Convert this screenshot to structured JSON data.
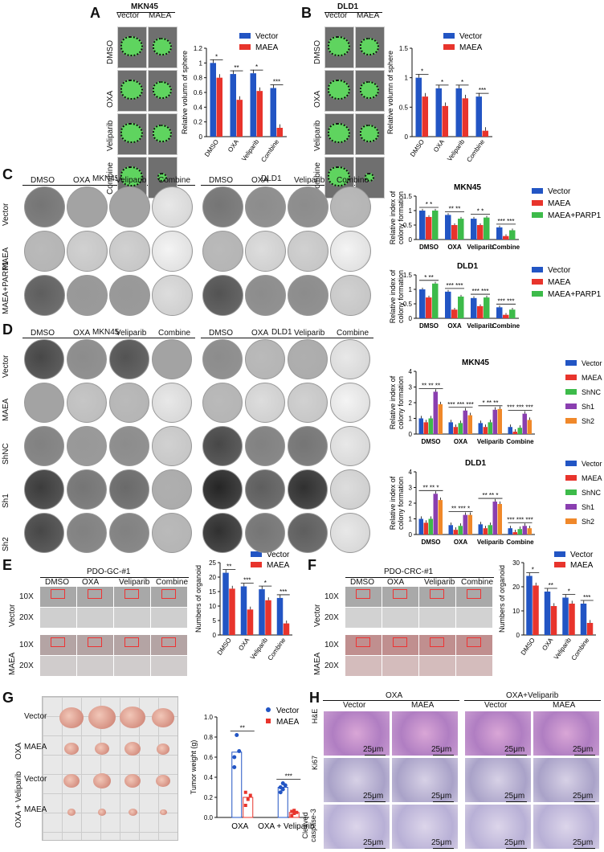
{
  "colors": {
    "vector": "#2255c4",
    "maea": "#e8342c",
    "maea_parp1": "#3dbb4a",
    "shnc": "#3dbb4a",
    "sh1": "#8a3fb0",
    "sh2": "#f0882a"
  },
  "panelA": {
    "label": "A",
    "cell": "MKN45",
    "cols": [
      "Vector",
      "MAEA"
    ],
    "rows": [
      "DMSO",
      "OXA",
      "Veliparib",
      "Combine"
    ]
  },
  "panelB": {
    "label": "B",
    "cell": "DLD1",
    "cols": [
      "Vector",
      "MAEA"
    ],
    "rows": [
      "DMSO",
      "OXA",
      "Veliparib",
      "Combine"
    ]
  },
  "panelC": {
    "label": "C",
    "cells": [
      "MKN45",
      "DLD1"
    ],
    "cols": [
      "DMSO",
      "OXA",
      "Veliparib",
      "Combine"
    ],
    "rows": [
      "Vector",
      "MAEA",
      "MAEA+PARP1"
    ]
  },
  "panelD": {
    "label": "D",
    "cells": [
      "MKN45",
      "DLD1"
    ],
    "cols": [
      "DMSO",
      "OXA",
      "Veliparib",
      "Combine"
    ],
    "rows": [
      "Vector",
      "MAEA",
      "ShNC",
      "Sh1",
      "Sh2"
    ]
  },
  "panelE": {
    "label": "E",
    "title": "PDO-GC-#1",
    "cols": [
      "DMSO",
      "OXA",
      "Veliparib",
      "Combine"
    ],
    "groups": [
      "Vector",
      "MAEA"
    ],
    "mags": [
      "10X",
      "20X"
    ]
  },
  "panelF": {
    "label": "F",
    "title": "PDO-CRC-#1",
    "cols": [
      "DMSO",
      "OXA",
      "Veliparib",
      "Combine"
    ],
    "groups": [
      "Vector",
      "MAEA"
    ],
    "mags": [
      "10X",
      "20X"
    ]
  },
  "panelG": {
    "label": "G",
    "groups": [
      "OXA",
      "OXA + Veliparib"
    ],
    "rows": [
      "Vector",
      "MAEA",
      "Vector",
      "MAEA"
    ]
  },
  "panelH": {
    "label": "H",
    "groups": [
      "OXA",
      "OXA+Veliparib"
    ],
    "cols": [
      "Vector",
      "MAEA",
      "Vector",
      "MAEA"
    ],
    "rows": [
      "H&E",
      "Ki67",
      "Cleaved caspase-3"
    ],
    "scale": "25μm"
  },
  "chart_data": [
    {
      "id": "A",
      "type": "bar",
      "title": "",
      "ylabel": "Relative volumn of sphere",
      "ylim": [
        0,
        1.2
      ],
      "yticks": [
        0.0,
        0.2,
        0.4,
        0.6,
        0.8,
        1.0,
        1.2
      ],
      "categories": [
        "DMSO",
        "OXA",
        "Veliparib",
        "Combine"
      ],
      "series": [
        {
          "name": "Vector",
          "values": [
            1.0,
            0.85,
            0.86,
            0.66
          ]
        },
        {
          "name": "MAEA",
          "values": [
            0.8,
            0.5,
            0.62,
            0.12
          ]
        }
      ],
      "annotations": [
        "*",
        "**",
        "*",
        "***"
      ],
      "legend": "top-right"
    },
    {
      "id": "B",
      "type": "bar",
      "title": "",
      "ylabel": "Relative volumn of sphere",
      "ylim": [
        0,
        1.5
      ],
      "yticks": [
        0.0,
        0.5,
        1.0,
        1.5
      ],
      "categories": [
        "DMSO",
        "OXA",
        "Veliparib",
        "Combine"
      ],
      "series": [
        {
          "name": "Vector",
          "values": [
            1.0,
            0.82,
            0.82,
            0.68
          ]
        },
        {
          "name": "MAEA",
          "values": [
            0.68,
            0.52,
            0.65,
            0.1
          ]
        }
      ],
      "annotations": [
        "*",
        "*",
        "*",
        "***"
      ],
      "legend": "top-right"
    },
    {
      "id": "C1",
      "type": "bar",
      "title": "MKN45",
      "ylabel": "Relative index of colony formation",
      "ylim": [
        0,
        1.5
      ],
      "yticks": [
        0.0,
        0.5,
        1.0,
        1.5
      ],
      "categories": [
        "DMSO",
        "OXA",
        "Veliparib",
        "Combine"
      ],
      "series": [
        {
          "name": "Vector",
          "values": [
            1.0,
            0.85,
            0.72,
            0.42
          ]
        },
        {
          "name": "MAEA",
          "values": [
            0.78,
            0.5,
            0.5,
            0.12
          ]
        },
        {
          "name": "MAEA+PARP1",
          "values": [
            1.0,
            0.72,
            0.76,
            0.32
          ]
        }
      ],
      "annotations": [
        "* *",
        "** **",
        "* *",
        "*** ***"
      ],
      "legend": "top-right"
    },
    {
      "id": "C2",
      "type": "bar",
      "title": "DLD1",
      "ylabel": "Relative index of colony formation",
      "ylim": [
        0,
        1.5
      ],
      "yticks": [
        0.0,
        0.5,
        1.0,
        1.5
      ],
      "categories": [
        "DMSO",
        "OXA",
        "Veliparib",
        "Combine"
      ],
      "series": [
        {
          "name": "Vector",
          "values": [
            1.0,
            0.92,
            0.7,
            0.38
          ]
        },
        {
          "name": "MAEA",
          "values": [
            0.72,
            0.3,
            0.42,
            0.12
          ]
        },
        {
          "name": "MAEA+PARP1",
          "values": [
            1.2,
            0.75,
            0.72,
            0.3
          ]
        }
      ],
      "annotations": [
        "* **",
        "*** ***",
        "*** ***",
        "*** ***"
      ],
      "legend": "top-right"
    },
    {
      "id": "D1",
      "type": "bar",
      "title": "MKN45",
      "ylabel": "Relative index of colony formation",
      "ylim": [
        0,
        4
      ],
      "yticks": [
        0,
        1,
        2,
        3,
        4
      ],
      "categories": [
        "DMSO",
        "OXA",
        "Veliparib",
        "Combine"
      ],
      "series": [
        {
          "name": "Vector",
          "values": [
            1.0,
            0.75,
            0.7,
            0.45
          ]
        },
        {
          "name": "MAEA",
          "values": [
            0.75,
            0.45,
            0.45,
            0.15
          ]
        },
        {
          "name": "ShNC",
          "values": [
            1.0,
            0.7,
            0.75,
            0.4
          ]
        },
        {
          "name": "Sh1",
          "values": [
            2.7,
            1.5,
            1.55,
            1.3
          ]
        },
        {
          "name": "Sh2",
          "values": [
            1.9,
            1.2,
            1.6,
            0.9
          ]
        }
      ],
      "annotations": [
        "** ** **",
        "*** *** ***",
        "* ** **",
        "*** *** ***"
      ],
      "legend": "right"
    },
    {
      "id": "D2",
      "type": "bar",
      "title": "DLD1",
      "ylabel": "Relative index of colony formation",
      "ylim": [
        0,
        4
      ],
      "yticks": [
        0,
        1,
        2,
        3,
        4
      ],
      "categories": [
        "DMSO",
        "OXA",
        "Veliparib",
        "Combine"
      ],
      "series": [
        {
          "name": "Vector",
          "values": [
            1.0,
            0.6,
            0.65,
            0.4
          ]
        },
        {
          "name": "MAEA",
          "values": [
            0.75,
            0.3,
            0.4,
            0.15
          ]
        },
        {
          "name": "ShNC",
          "values": [
            1.0,
            0.55,
            0.6,
            0.35
          ]
        },
        {
          "name": "Sh1",
          "values": [
            2.6,
            1.25,
            2.1,
            0.55
          ]
        },
        {
          "name": "Sh2",
          "values": [
            2.2,
            1.25,
            1.95,
            0.4
          ]
        }
      ],
      "annotations": [
        "** ** *",
        "** *** *",
        "** ** *",
        "*** *** ***"
      ],
      "legend": "right"
    },
    {
      "id": "E",
      "type": "bar",
      "title": "",
      "ylabel": "Numbers of organoid",
      "ylim": [
        0,
        25
      ],
      "yticks": [
        0,
        5,
        10,
        15,
        20,
        25
      ],
      "categories": [
        "DMSO",
        "OXA",
        "Veliparib",
        "Combine"
      ],
      "series": [
        {
          "name": "Vector",
          "values": [
            21.5,
            16.8,
            15.8,
            12.8
          ]
        },
        {
          "name": "MAEA",
          "values": [
            16.0,
            8.8,
            12.0,
            4.0
          ]
        }
      ],
      "annotations": [
        "**",
        "***",
        "*",
        "***"
      ],
      "legend": "top-right"
    },
    {
      "id": "F",
      "type": "bar",
      "title": "",
      "ylabel": "Numbers of organoid",
      "ylim": [
        0,
        30
      ],
      "yticks": [
        0,
        10,
        20,
        30
      ],
      "categories": [
        "DMSO",
        "OXA",
        "Veliparib",
        "Combine"
      ],
      "series": [
        {
          "name": "Vector",
          "values": [
            24.5,
            18.0,
            15.5,
            13.0
          ]
        },
        {
          "name": "MAEA",
          "values": [
            20.5,
            12.0,
            13.0,
            5.0
          ]
        }
      ],
      "annotations": [
        "*",
        "**",
        "*",
        "***"
      ],
      "legend": "top-right"
    },
    {
      "id": "G",
      "type": "scatter",
      "title": "",
      "ylabel": "Tumor weight (g)",
      "ylim": [
        0,
        1.0
      ],
      "yticks": [
        0.0,
        0.2,
        0.4,
        0.6,
        0.8,
        1.0
      ],
      "categories": [
        "OXA",
        "OXA + Veliparib"
      ],
      "series": [
        {
          "name": "Vector",
          "values": [
            0.65,
            0.3
          ],
          "points": [
            [
              0.5,
              0.82,
              0.66,
              0.6
            ],
            [
              0.25,
              0.28,
              0.32,
              0.3,
              0.34
            ]
          ]
        },
        {
          "name": "MAEA",
          "values": [
            0.2,
            0.05
          ],
          "points": [
            [
              0.12,
              0.18,
              0.22,
              0.25
            ],
            [
              0.02,
              0.04,
              0.05,
              0.06,
              0.07
            ]
          ]
        }
      ],
      "annotations": [
        "**",
        "***"
      ],
      "legend": "top-right"
    }
  ]
}
